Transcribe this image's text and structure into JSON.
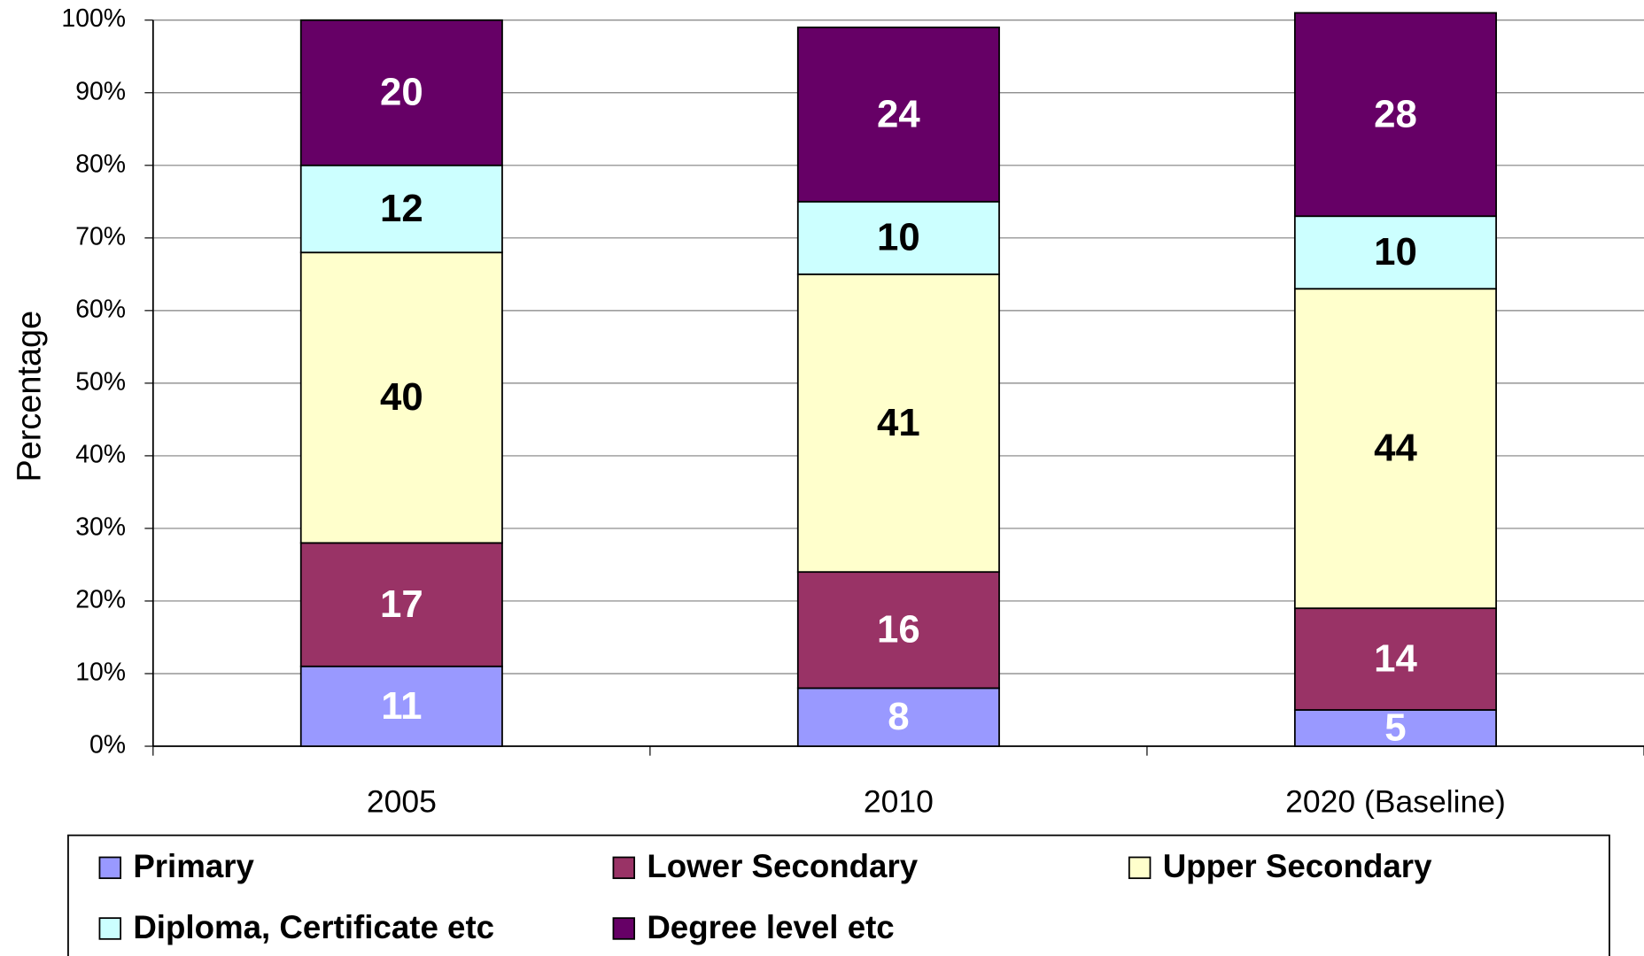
{
  "chart_data": {
    "type": "stacked_bar",
    "y_label": "Percentage",
    "categories": [
      "2005",
      "2010",
      "2020 (Baseline)"
    ],
    "series": [
      {
        "name": "Primary",
        "color": "#9999ff",
        "label_color": "#ffffff",
        "values": [
          11,
          8,
          5
        ]
      },
      {
        "name": "Lower Secondary",
        "color": "#993366",
        "label_color": "#ffffff",
        "values": [
          17,
          16,
          14
        ]
      },
      {
        "name": "Upper Secondary",
        "color": "#ffffcc",
        "label_color": "#000000",
        "values": [
          40,
          41,
          44
        ]
      },
      {
        "name": "Diploma, Certificate etc",
        "color": "#ccffff",
        "label_color": "#000000",
        "values": [
          12,
          10,
          10
        ]
      },
      {
        "name": "Degree level etc",
        "color": "#660066",
        "label_color": "#ffffff",
        "values": [
          20,
          24,
          28
        ]
      }
    ],
    "ylim": [
      0,
      100
    ],
    "yticks": [
      {
        "value": 0,
        "label": "0%"
      },
      {
        "value": 10,
        "label": "10%"
      },
      {
        "value": 20,
        "label": "20%"
      },
      {
        "value": 30,
        "label": "30%"
      },
      {
        "value": 40,
        "label": "40%"
      },
      {
        "value": 50,
        "label": "50%"
      },
      {
        "value": 60,
        "label": "60%"
      },
      {
        "value": 70,
        "label": "70%"
      },
      {
        "value": 80,
        "label": "80%"
      },
      {
        "value": 90,
        "label": "90%"
      },
      {
        "value": 100,
        "label": "100%"
      }
    ],
    "grid": true,
    "legend": "bottom"
  }
}
